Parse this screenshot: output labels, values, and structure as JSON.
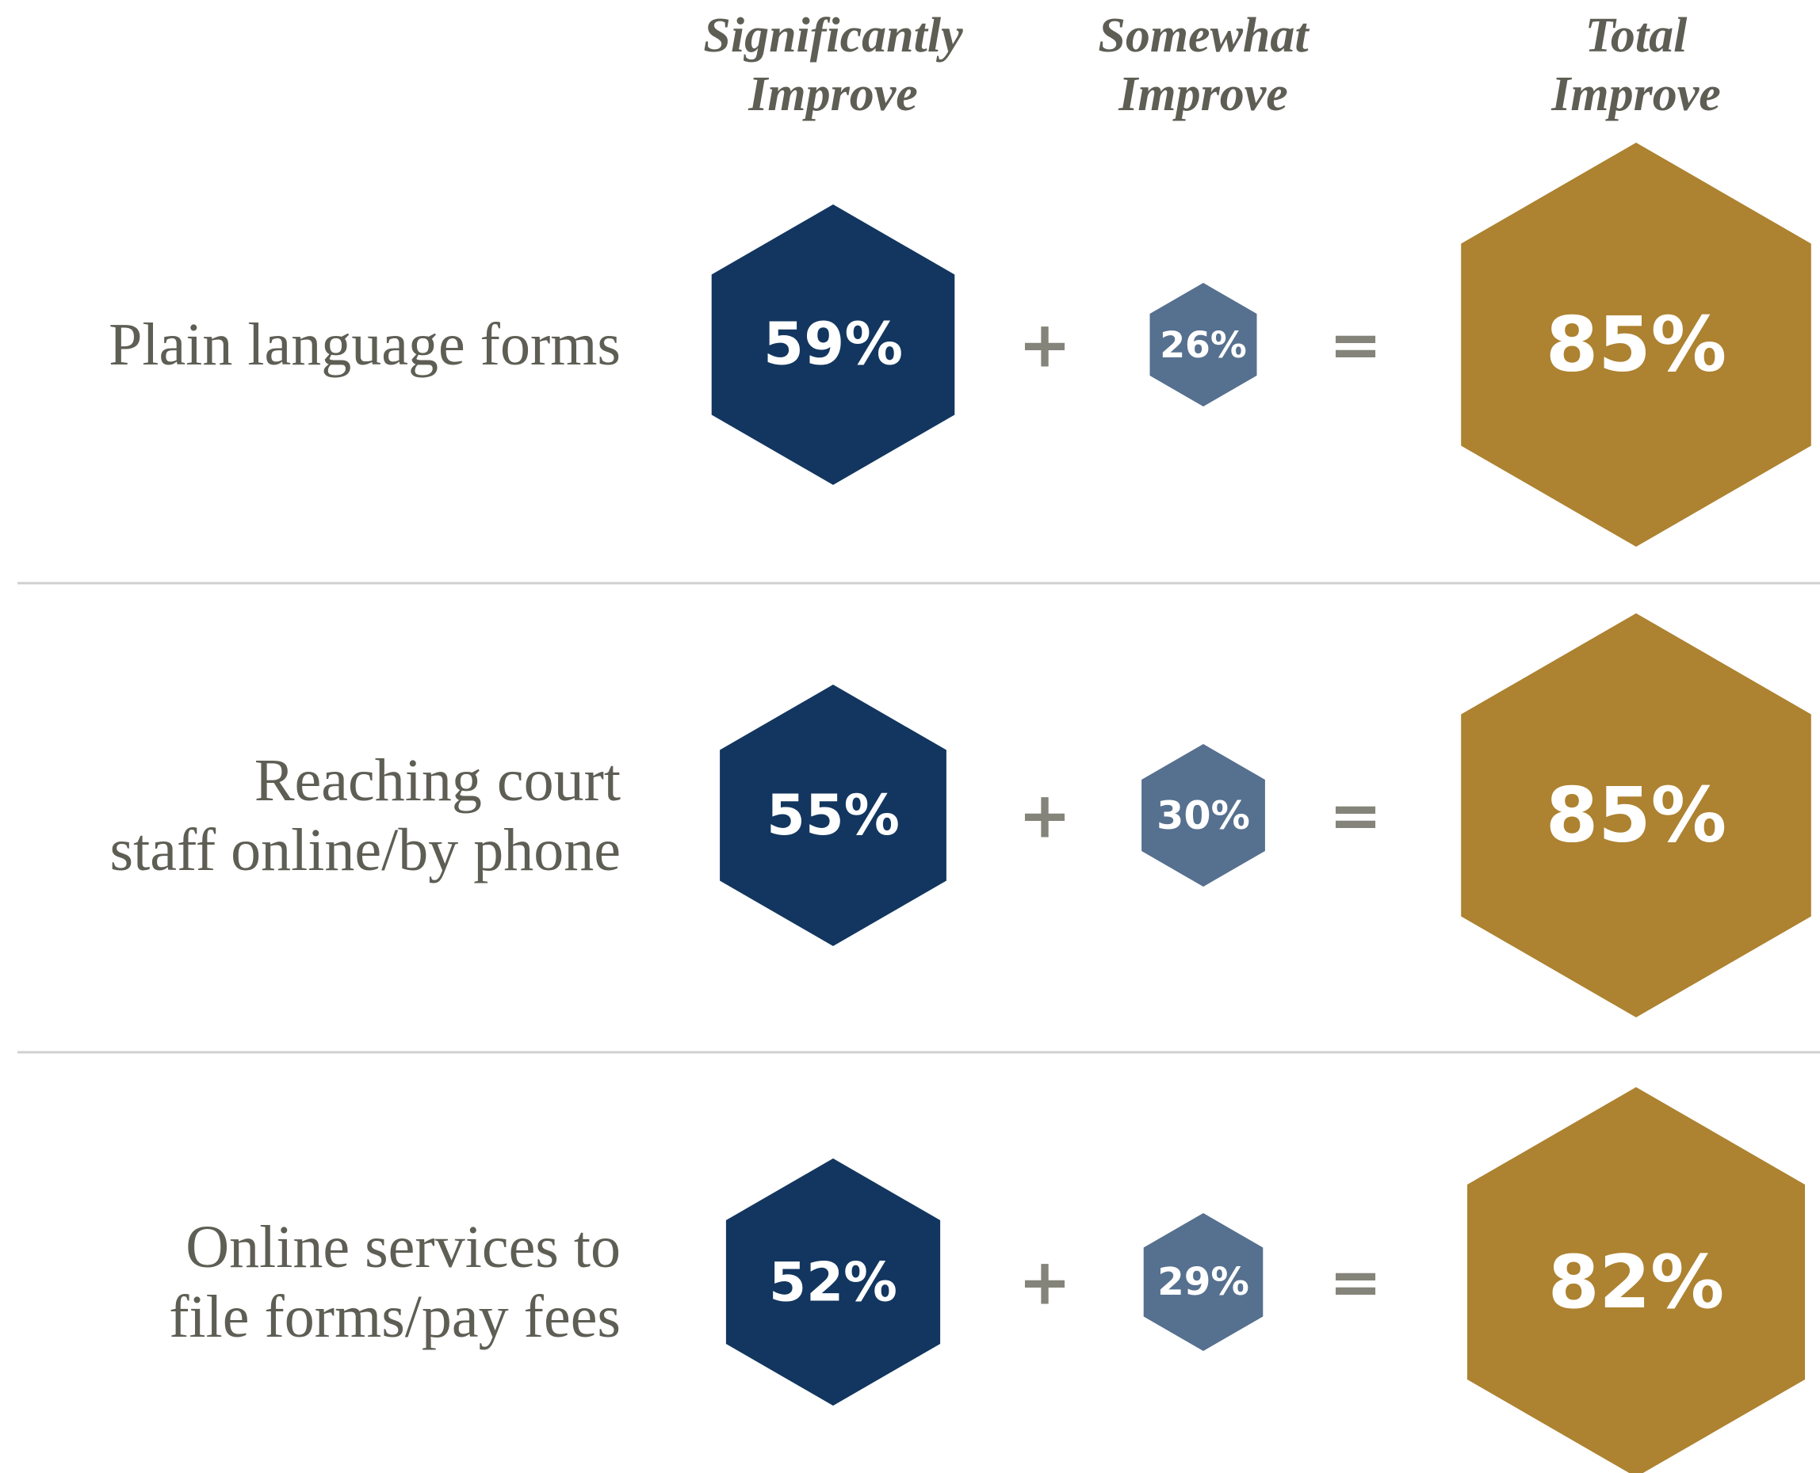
{
  "chart_data": {
    "type": "hexagon",
    "categories": [
      [
        "Plain language forms"
      ],
      [
        "Reaching court",
        "staff online/by phone"
      ],
      [
        "Online services to",
        "file forms/pay fees"
      ]
    ],
    "operators": [
      "+",
      "="
    ],
    "series": [
      {
        "name": "Significantly Improve",
        "color": "#12365f",
        "values": [
          59,
          55,
          52
        ],
        "value_labels": [
          "59%",
          "55%",
          "52%"
        ]
      },
      {
        "name": "Somewhat Improve",
        "color": "#56708f",
        "values": [
          26,
          30,
          29
        ],
        "value_labels": [
          "26%",
          "30%",
          "29%"
        ]
      },
      {
        "name": "Total Improve",
        "color": "#ad8230",
        "values": [
          85,
          85,
          82
        ],
        "value_labels": [
          "85%",
          "85%",
          "82%"
        ]
      }
    ]
  }
}
